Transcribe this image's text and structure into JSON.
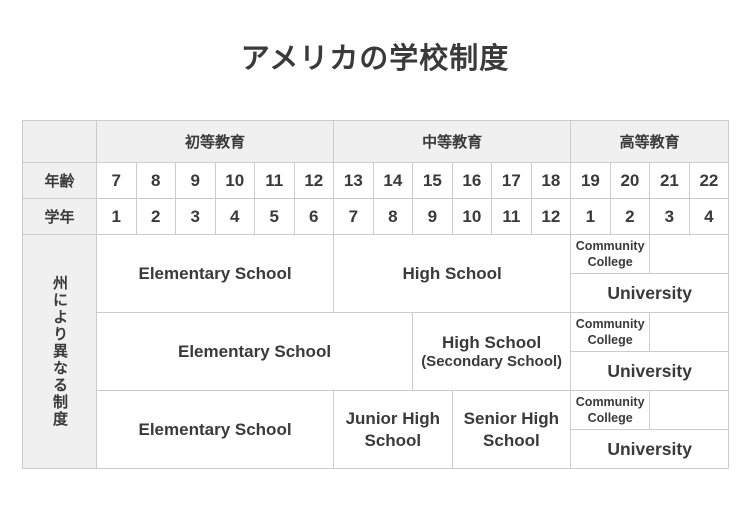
{
  "page": {
    "title": "アメリカの学校制度"
  },
  "colors": {
    "header_bg": "#f0f0f0",
    "border": "#cccccc",
    "text": "#3a3a3a",
    "background": "#ffffff"
  },
  "table": {
    "stages": [
      {
        "label": "初等教育",
        "span": 6
      },
      {
        "label": "中等教育",
        "span": 6
      },
      {
        "label": "高等教育",
        "span": 4
      }
    ],
    "age_row": {
      "label": "年齢",
      "values": [
        "7",
        "8",
        "9",
        "10",
        "11",
        "12",
        "13",
        "14",
        "15",
        "16",
        "17",
        "18",
        "19",
        "20",
        "21",
        "22"
      ]
    },
    "grade_row": {
      "label": "学年",
      "values": [
        "1",
        "2",
        "3",
        "4",
        "5",
        "6",
        "7",
        "8",
        "9",
        "10",
        "11",
        "12",
        "1",
        "2",
        "3",
        "4"
      ]
    },
    "side_label": "州により異なる制度",
    "groups": [
      {
        "cells": [
          {
            "label": "Elementary School",
            "span": 6
          },
          {
            "label": "High School",
            "span": 6
          }
        ],
        "community_college": "Community College",
        "university": "University"
      },
      {
        "cells": [
          {
            "label": "Elementary School",
            "span": 8
          },
          {
            "label": "High School",
            "sublabel": "(Secondary School)",
            "span": 4
          }
        ],
        "community_college": "Community College",
        "university": "University"
      },
      {
        "cells": [
          {
            "label": "Elementary School",
            "span": 6
          },
          {
            "label": "Junior High School",
            "span": 3
          },
          {
            "label": "Senior High School",
            "span": 3
          }
        ],
        "community_college": "Community College",
        "university": "University"
      }
    ]
  }
}
